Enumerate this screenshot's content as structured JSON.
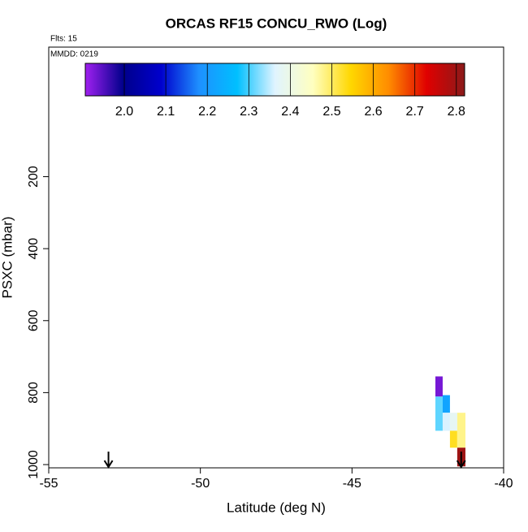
{
  "chart_data": {
    "type": "heatmap",
    "title": "ORCAS RF15 CONCU_RWO (Log)",
    "flights_label": "Flts: 15",
    "date_label": "MMDD: 0219",
    "xlabel": "Latitude (deg N)",
    "ylabel": "PSXC (mbar)",
    "xlim": [
      -55,
      -40
    ],
    "xticks": [
      -55,
      -50,
      -45,
      -40
    ],
    "ylim": [
      1009,
      -160
    ],
    "yticks": [
      200,
      400,
      600,
      800,
      1000
    ],
    "clim": [
      1.906,
      2.82
    ],
    "cticks": [
      {
        "value": 2,
        "label": "2.0"
      },
      2.1,
      2.2,
      2.3,
      2.4,
      2.5,
      2.6,
      2.7,
      2.8
    ],
    "colorscale": [
      "#a020f0",
      "#00008b",
      "#0000cd",
      "#1e90ff",
      "#00bfff",
      "#e0f4ff",
      "#ffffc0",
      "#ffd700",
      "#ff8c00",
      "#e00000",
      "#8b1a1a"
    ],
    "cells": [
      {
        "lat": [
          -42.25,
          -42.01
        ],
        "p": [
          755,
          811
        ],
        "value": 1.93
      },
      {
        "lat": [
          -42.25,
          -42.01
        ],
        "p": [
          811,
          906
        ],
        "value": 2.31
      },
      {
        "lat": [
          -42.01,
          -41.77
        ],
        "p": [
          807,
          856
        ],
        "value": 2.22
      },
      {
        "lat": [
          -42.01,
          -41.77
        ],
        "p": [
          856,
          906
        ],
        "value": 2.36
      },
      {
        "lat": [
          -41.77,
          -41.53
        ],
        "p": [
          856,
          906
        ],
        "value": 2.38
      },
      {
        "lat": [
          -41.77,
          -41.53
        ],
        "p": [
          906,
          953
        ],
        "value": 2.53
      },
      {
        "lat": [
          -41.53,
          -41.26
        ],
        "p": [
          856,
          953
        ],
        "value": 2.48
      },
      {
        "lat": [
          -41.53,
          -41.26
        ],
        "p": [
          953,
          1005
        ],
        "value": 2.8
      }
    ],
    "arrows": [
      -53.03,
      -41.4
    ]
  }
}
